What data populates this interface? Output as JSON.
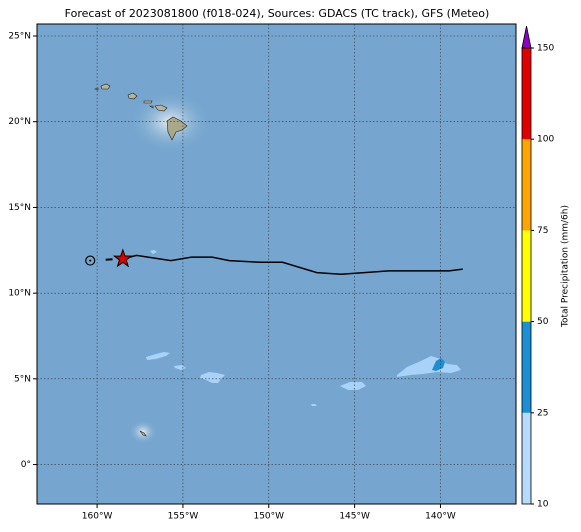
{
  "map": {
    "title": "Forecast of 2023081800 (f018-024), Sources: GDACS (TC track), GFS (Meteo)",
    "xlim": [
      -163.5,
      -135.6
    ],
    "ylim": [
      -2.3,
      25.7
    ],
    "xticks": [
      {
        "value": -160,
        "label": "160°W"
      },
      {
        "value": -155,
        "label": "155°W"
      },
      {
        "value": -150,
        "label": "150°W"
      },
      {
        "value": -145,
        "label": "145°W"
      },
      {
        "value": -140,
        "label": "140°W"
      }
    ],
    "yticks": [
      {
        "value": 0,
        "label": "0°"
      },
      {
        "value": 5,
        "label": "5°N"
      },
      {
        "value": 10,
        "label": "10°N"
      },
      {
        "value": 15,
        "label": "15°N"
      },
      {
        "value": 20,
        "label": "20°N"
      },
      {
        "value": 25,
        "label": "25°N"
      }
    ],
    "grid": true,
    "track": {
      "lon": [
        -158.5,
        -157.7,
        -155.7,
        -154.5,
        -153.3,
        -152.3,
        -150.5,
        -149.2,
        -147.2,
        -145.8,
        -143.0,
        -141.0,
        -139.5,
        -138.7
      ],
      "lat": [
        12.0,
        12.2,
        11.9,
        12.1,
        12.1,
        11.9,
        11.8,
        11.8,
        11.2,
        11.1,
        11.3,
        11.3,
        11.3,
        11.4
      ],
      "color": "#000000"
    },
    "past_track": {
      "lon": [
        -159.5,
        -159.1
      ],
      "lat": [
        11.95,
        11.98
      ]
    },
    "storm_position": {
      "lon": -158.5,
      "lat": 12.0,
      "color": "#dd0000"
    },
    "initial_position": {
      "lon": -160.4,
      "lat": 11.9
    },
    "colorbar": {
      "label": "Total Precipitation (mm/6h)",
      "ticks": [
        10,
        25,
        50,
        75,
        100,
        150
      ],
      "colors": [
        "#b5dafc",
        "#1a8fd6",
        "#ffff00",
        "#ffa500",
        "#e00000"
      ],
      "over_color": "#8a00c8"
    }
  }
}
